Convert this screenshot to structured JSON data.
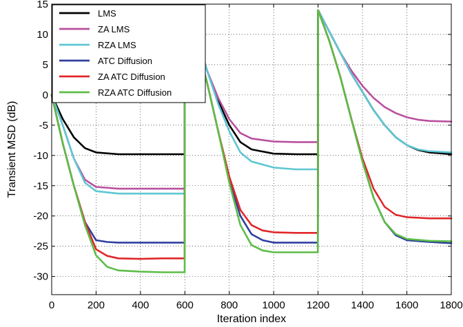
{
  "chart_data": {
    "type": "line",
    "title": "",
    "xlabel": "Iteration index",
    "ylabel": "Transient  MSD  (dB)",
    "xlim": [
      0,
      1800
    ],
    "ylim": [
      -33,
      15
    ],
    "xticks": [
      "0",
      "200",
      "400",
      "600",
      "800",
      "1000",
      "1200",
      "1400",
      "1600",
      "1800"
    ],
    "yticks": [
      "15",
      "10",
      "5",
      "0",
      "-5",
      "-10",
      "-15",
      "-20",
      "-25",
      "-30"
    ],
    "grid": true,
    "legend_position": "top-left",
    "series": [
      {
        "name": "LMS",
        "color": "#000000",
        "points": [
          [
            0,
            0
          ],
          [
            50,
            -4
          ],
          [
            100,
            -7
          ],
          [
            150,
            -8.8
          ],
          [
            200,
            -9.5
          ],
          [
            300,
            -9.8
          ],
          [
            400,
            -9.8
          ],
          [
            500,
            -9.8
          ],
          [
            599,
            -9.8
          ],
          [
            600,
            14
          ],
          [
            650,
            10
          ],
          [
            700,
            4
          ],
          [
            750,
            -1
          ],
          [
            800,
            -5
          ],
          [
            850,
            -7.8
          ],
          [
            900,
            -9
          ],
          [
            1000,
            -9.7
          ],
          [
            1100,
            -9.8
          ],
          [
            1199,
            -9.8
          ],
          [
            1200,
            14
          ],
          [
            1250,
            10.5
          ],
          [
            1300,
            7
          ],
          [
            1350,
            3.5
          ],
          [
            1400,
            0.5
          ],
          [
            1450,
            -2.5
          ],
          [
            1500,
            -5
          ],
          [
            1550,
            -7
          ],
          [
            1600,
            -8.3
          ],
          [
            1650,
            -9.1
          ],
          [
            1700,
            -9.5
          ],
          [
            1800,
            -9.8
          ]
        ]
      },
      {
        "name": "ZA LMS",
        "color": "#b9509e",
        "points": [
          [
            0,
            0
          ],
          [
            50,
            -5
          ],
          [
            100,
            -10.5
          ],
          [
            150,
            -14
          ],
          [
            200,
            -15.2
          ],
          [
            300,
            -15.5
          ],
          [
            400,
            -15.5
          ],
          [
            500,
            -15.5
          ],
          [
            599,
            -15.5
          ],
          [
            600,
            14
          ],
          [
            650,
            10
          ],
          [
            700,
            4
          ],
          [
            750,
            -0.5
          ],
          [
            800,
            -4
          ],
          [
            850,
            -6.3
          ],
          [
            900,
            -7.2
          ],
          [
            1000,
            -7.7
          ],
          [
            1100,
            -7.8
          ],
          [
            1199,
            -7.8
          ],
          [
            1200,
            14
          ],
          [
            1250,
            10.5
          ],
          [
            1300,
            7
          ],
          [
            1350,
            4
          ],
          [
            1400,
            1.5
          ],
          [
            1450,
            -0.5
          ],
          [
            1500,
            -2
          ],
          [
            1550,
            -3
          ],
          [
            1600,
            -3.7
          ],
          [
            1650,
            -4.1
          ],
          [
            1700,
            -4.3
          ],
          [
            1800,
            -4.4
          ]
        ]
      },
      {
        "name": "RZA LMS",
        "color": "#5ec6d3",
        "points": [
          [
            0,
            0
          ],
          [
            50,
            -5
          ],
          [
            100,
            -10.5
          ],
          [
            150,
            -14.5
          ],
          [
            200,
            -15.9
          ],
          [
            300,
            -16.3
          ],
          [
            400,
            -16.3
          ],
          [
            500,
            -16.3
          ],
          [
            599,
            -16.3
          ],
          [
            600,
            14
          ],
          [
            650,
            10
          ],
          [
            700,
            4
          ],
          [
            750,
            -1.5
          ],
          [
            800,
            -6
          ],
          [
            850,
            -9.5
          ],
          [
            900,
            -11
          ],
          [
            1000,
            -12
          ],
          [
            1100,
            -12.3
          ],
          [
            1199,
            -12.3
          ],
          [
            1200,
            14
          ],
          [
            1250,
            10.5
          ],
          [
            1300,
            7
          ],
          [
            1350,
            3.5
          ],
          [
            1400,
            0.5
          ],
          [
            1450,
            -2.5
          ],
          [
            1500,
            -5
          ],
          [
            1550,
            -7
          ],
          [
            1600,
            -8.3
          ],
          [
            1650,
            -9
          ],
          [
            1700,
            -9.3
          ],
          [
            1800,
            -9.5
          ]
        ]
      },
      {
        "name": "ATC Diffusion",
        "color": "#2e3f9e",
        "points": [
          [
            0,
            0
          ],
          [
            50,
            -8
          ],
          [
            100,
            -15
          ],
          [
            150,
            -21
          ],
          [
            200,
            -24
          ],
          [
            250,
            -24.3
          ],
          [
            300,
            -24.4
          ],
          [
            400,
            -24.4
          ],
          [
            500,
            -24.4
          ],
          [
            599,
            -24.4
          ],
          [
            600,
            14
          ],
          [
            650,
            9
          ],
          [
            700,
            2
          ],
          [
            750,
            -6
          ],
          [
            800,
            -14
          ],
          [
            850,
            -20
          ],
          [
            900,
            -23
          ],
          [
            950,
            -24
          ],
          [
            1000,
            -24.4
          ],
          [
            1100,
            -24.4
          ],
          [
            1199,
            -24.4
          ],
          [
            1200,
            14
          ],
          [
            1250,
            9
          ],
          [
            1300,
            3
          ],
          [
            1350,
            -4
          ],
          [
            1400,
            -11
          ],
          [
            1450,
            -17
          ],
          [
            1500,
            -21
          ],
          [
            1550,
            -23.2
          ],
          [
            1600,
            -24
          ],
          [
            1700,
            -24.3
          ],
          [
            1800,
            -24.5
          ]
        ]
      },
      {
        "name": "ZA ATC Diffusion",
        "color": "#e0262a",
        "points": [
          [
            0,
            0
          ],
          [
            50,
            -8
          ],
          [
            100,
            -15
          ],
          [
            150,
            -21
          ],
          [
            200,
            -25.5
          ],
          [
            250,
            -26.6
          ],
          [
            300,
            -27
          ],
          [
            400,
            -27.1
          ],
          [
            500,
            -27
          ],
          [
            599,
            -27
          ],
          [
            600,
            14
          ],
          [
            650,
            9
          ],
          [
            700,
            2
          ],
          [
            750,
            -6
          ],
          [
            800,
            -13.5
          ],
          [
            850,
            -19
          ],
          [
            900,
            -21.5
          ],
          [
            950,
            -22.4
          ],
          [
            1000,
            -22.7
          ],
          [
            1100,
            -22.8
          ],
          [
            1199,
            -22.8
          ],
          [
            1200,
            14
          ],
          [
            1250,
            9
          ],
          [
            1300,
            3
          ],
          [
            1350,
            -4
          ],
          [
            1400,
            -10.5
          ],
          [
            1450,
            -15.5
          ],
          [
            1500,
            -18.5
          ],
          [
            1550,
            -19.8
          ],
          [
            1600,
            -20.2
          ],
          [
            1700,
            -20.4
          ],
          [
            1800,
            -20.4
          ]
        ]
      },
      {
        "name": "RZA ATC Diffusion",
        "color": "#5cbd46",
        "points": [
          [
            0,
            0
          ],
          [
            50,
            -8
          ],
          [
            100,
            -15
          ],
          [
            150,
            -21.5
          ],
          [
            200,
            -26.5
          ],
          [
            250,
            -28.4
          ],
          [
            300,
            -29
          ],
          [
            400,
            -29.2
          ],
          [
            500,
            -29.3
          ],
          [
            599,
            -29.3
          ],
          [
            600,
            14
          ],
          [
            650,
            9
          ],
          [
            700,
            2
          ],
          [
            750,
            -6
          ],
          [
            800,
            -14.5
          ],
          [
            850,
            -21.5
          ],
          [
            900,
            -24.8
          ],
          [
            950,
            -25.7
          ],
          [
            1000,
            -26
          ],
          [
            1100,
            -26
          ],
          [
            1199,
            -26
          ],
          [
            1200,
            14
          ],
          [
            1250,
            9
          ],
          [
            1300,
            3
          ],
          [
            1350,
            -4
          ],
          [
            1400,
            -11
          ],
          [
            1450,
            -17
          ],
          [
            1500,
            -21
          ],
          [
            1550,
            -23
          ],
          [
            1600,
            -23.8
          ],
          [
            1700,
            -24.1
          ],
          [
            1800,
            -24.2
          ]
        ]
      }
    ]
  }
}
